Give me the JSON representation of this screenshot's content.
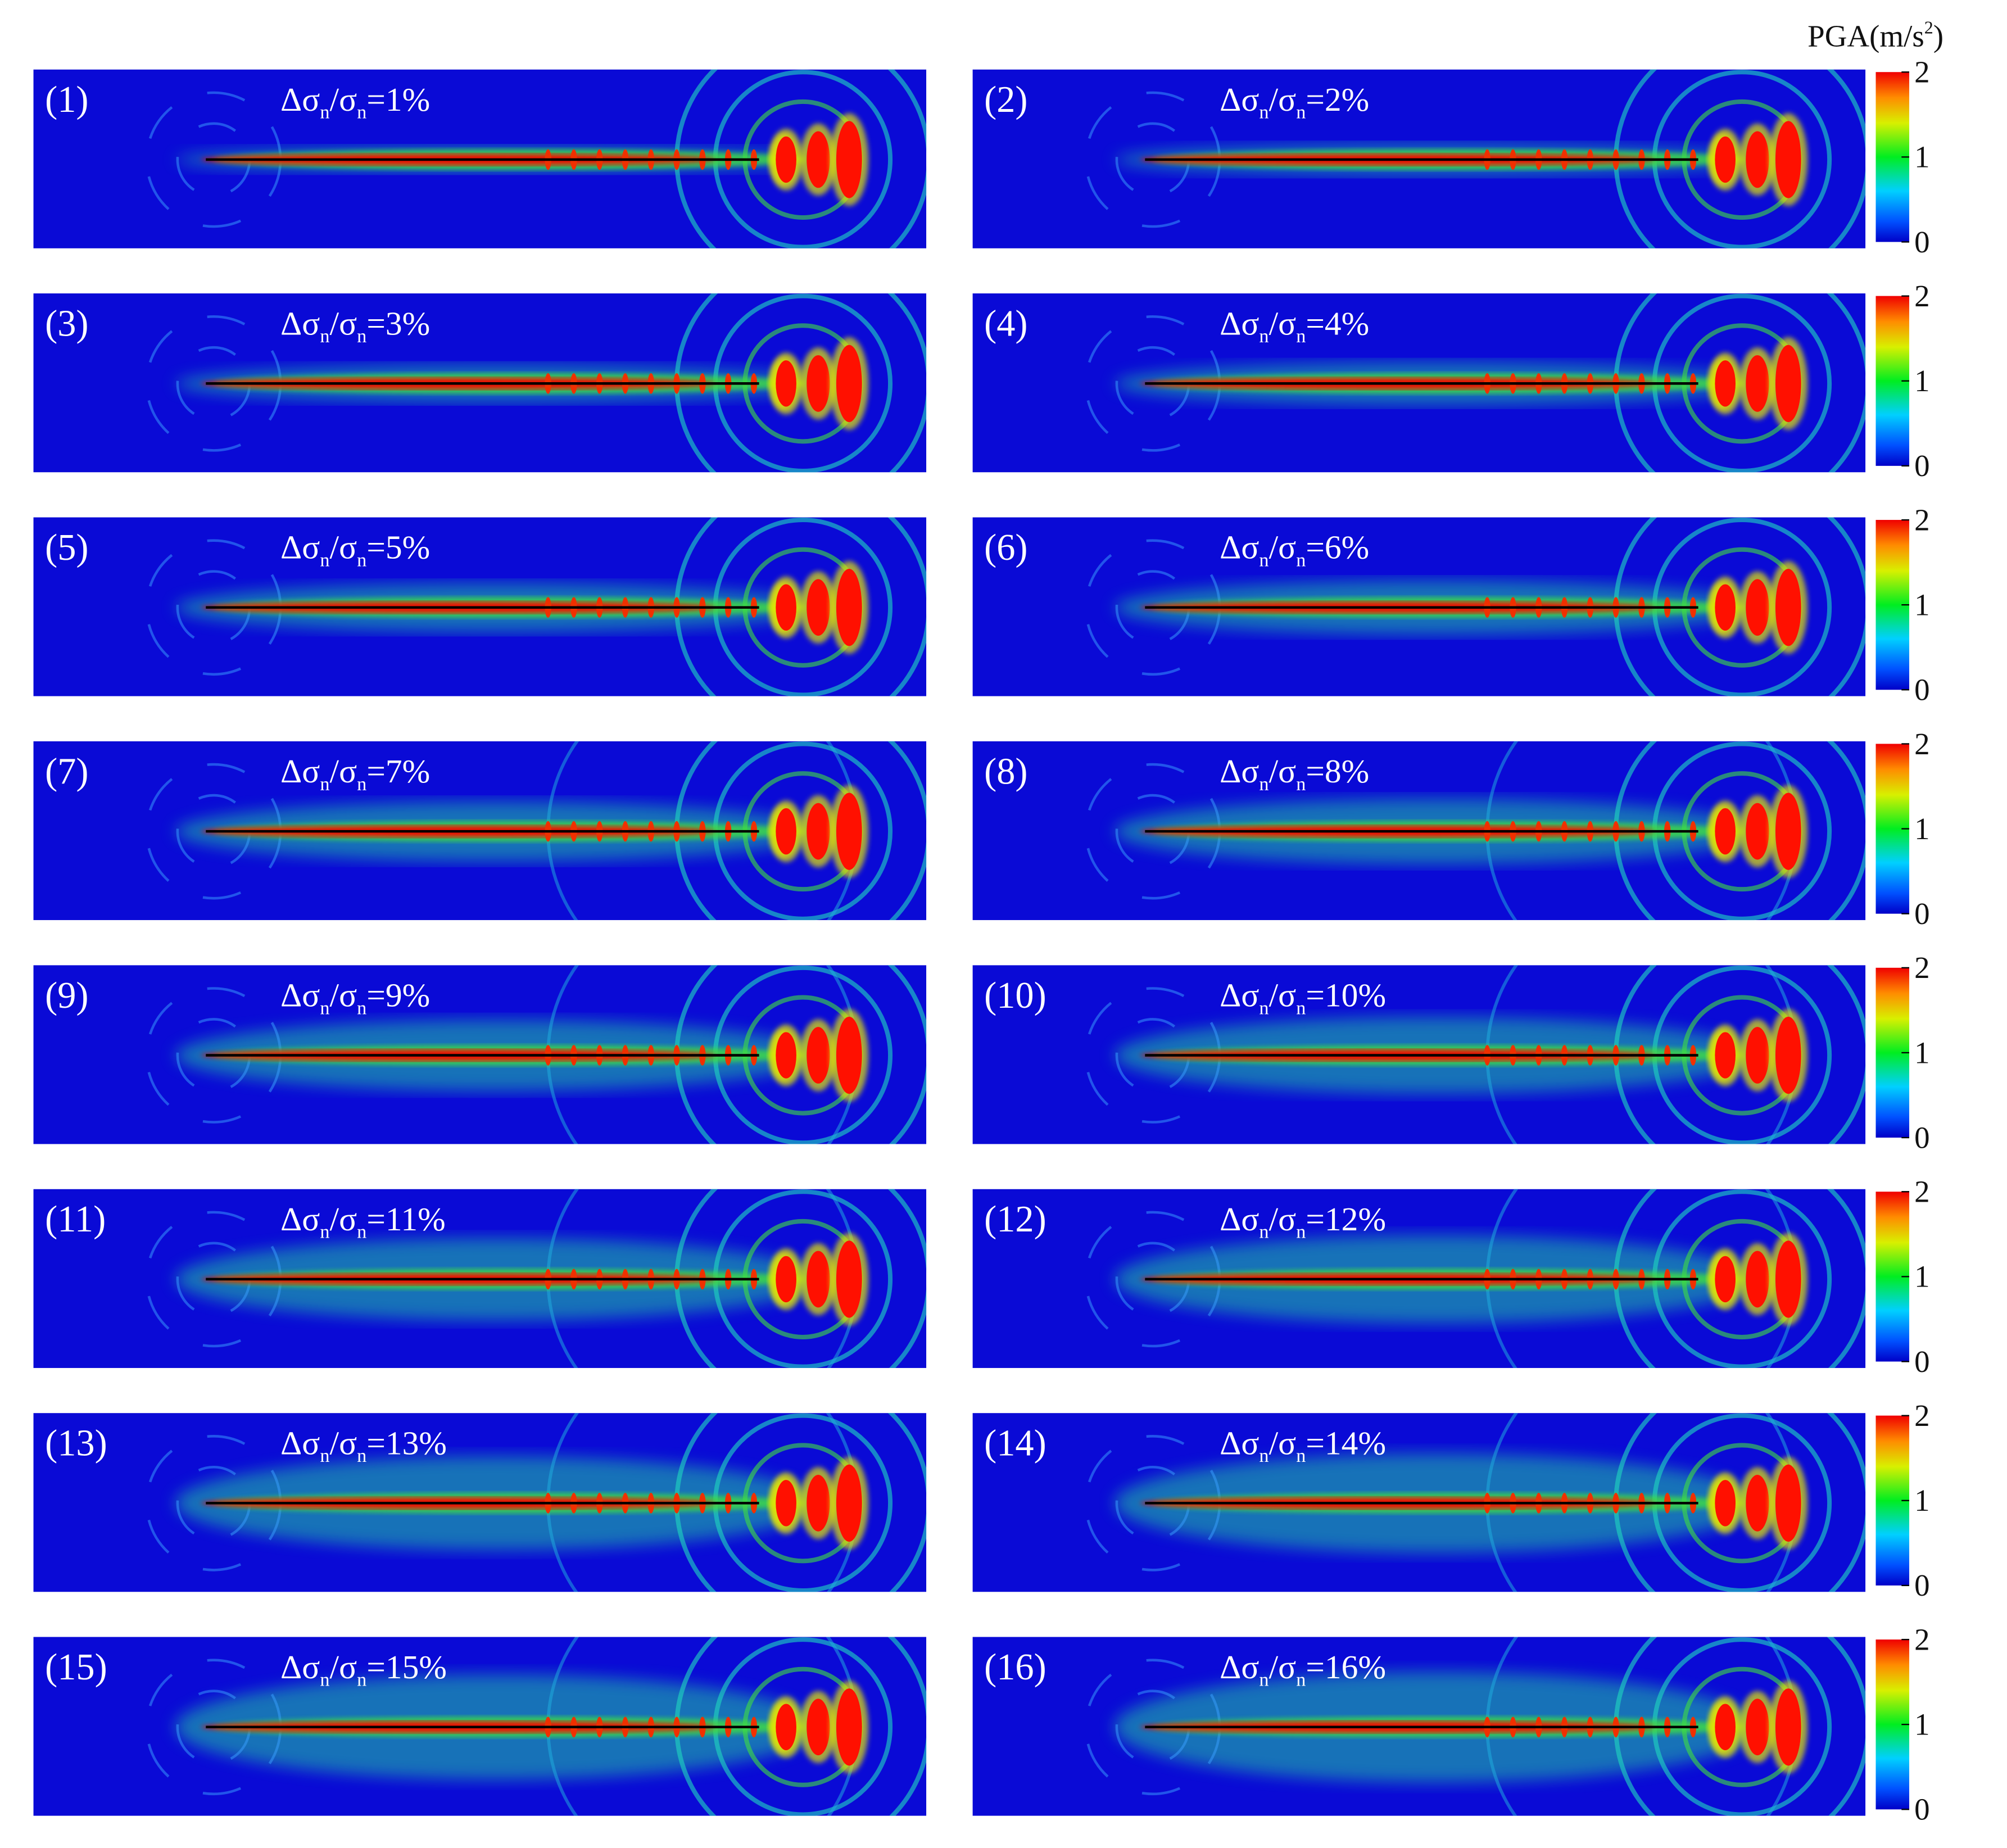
{
  "figure": {
    "colorbar": {
      "title_parts": [
        "PGA(m/s",
        "2",
        ")"
      ],
      "lim": [
        0,
        2
      ],
      "ticks": [
        0,
        1,
        2
      ]
    },
    "ratio_parts": [
      "Δσ",
      "n",
      "/σ",
      "n"
    ],
    "panels": [
      {
        "label": "(1)",
        "ratio": "=1%"
      },
      {
        "label": "(2)",
        "ratio": "=2%"
      },
      {
        "label": "(3)",
        "ratio": "=3%"
      },
      {
        "label": "(4)",
        "ratio": "=4%"
      },
      {
        "label": "(5)",
        "ratio": "=5%"
      },
      {
        "label": "(6)",
        "ratio": "=6%"
      },
      {
        "label": "(7)",
        "ratio": "=7%"
      },
      {
        "label": "(8)",
        "ratio": "=8%"
      },
      {
        "label": "(9)",
        "ratio": "=9%"
      },
      {
        "label": "(10)",
        "ratio": "=10%"
      },
      {
        "label": "(11)",
        "ratio": "=11%"
      },
      {
        "label": "(12)",
        "ratio": "=12%"
      },
      {
        "label": "(13)",
        "ratio": "=13%"
      },
      {
        "label": "(14)",
        "ratio": "=14%"
      },
      {
        "label": "(15)",
        "ratio": "=15%"
      },
      {
        "label": "(16)",
        "ratio": "=16%"
      }
    ]
  }
}
